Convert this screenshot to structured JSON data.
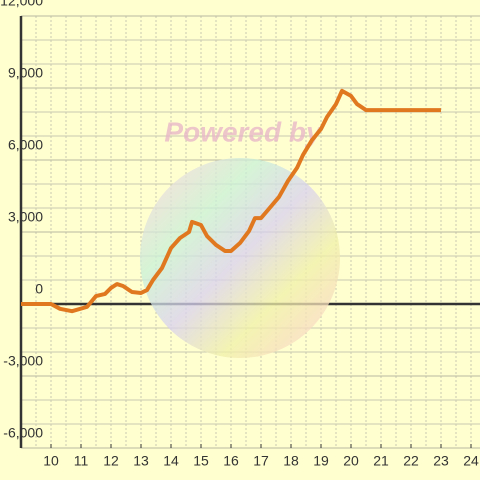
{
  "chart_data": {
    "type": "line",
    "watermark": "Powered by",
    "x": [
      9.0,
      10.0,
      10.3,
      10.7,
      11.2,
      11.5,
      11.8,
      12.0,
      12.2,
      12.4,
      12.7,
      13.0,
      13.2,
      13.4,
      13.7,
      14.0,
      14.3,
      14.6,
      14.7,
      15.0,
      15.2,
      15.5,
      15.8,
      16.0,
      16.3,
      16.6,
      16.8,
      17.0,
      17.2,
      17.6,
      17.9,
      18.2,
      18.4,
      18.7,
      19.0,
      19.2,
      19.5,
      19.7,
      20.0,
      20.2,
      20.5,
      21.0,
      23.0
    ],
    "series": [
      {
        "color": "#e07820",
        "values": [
          0,
          0,
          -200,
          -300,
          -120,
          330,
          420,
          670,
          830,
          750,
          500,
          460,
          580,
          1000,
          1500,
          2330,
          2750,
          3000,
          3420,
          3290,
          2830,
          2460,
          2210,
          2210,
          2540,
          3040,
          3580,
          3580,
          3870,
          4460,
          5130,
          5670,
          6210,
          6830,
          7290,
          7790,
          8330,
          8880,
          8670,
          8330,
          8080,
          8080,
          8080
        ]
      }
    ],
    "xlim": [
      9,
      24.3
    ],
    "xticks": [
      10,
      11,
      12,
      13,
      14,
      15,
      16,
      17,
      18,
      19,
      20,
      21,
      22,
      23,
      24
    ],
    "ylim": [
      -6000,
      12000
    ],
    "yticks": [
      {
        "value": -6000,
        "label": "-6,000"
      },
      {
        "value": -3000,
        "label": "-3,000"
      },
      0,
      {
        "value": 3000,
        "label": "3,000"
      },
      {
        "value": 6000,
        "label": "6,000"
      },
      {
        "value": 9000,
        "label": "9,000"
      },
      {
        "value": 12000,
        "label": "12,000"
      }
    ],
    "grid": true
  }
}
